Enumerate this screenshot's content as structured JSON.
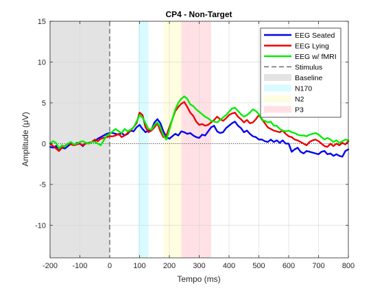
{
  "chart_data": {
    "type": "line",
    "title": "CP4 - Non-Target",
    "xlabel": "Tempo (ms)",
    "ylabel": "Amplitude (μV)",
    "xlim": [
      -200,
      800
    ],
    "ylim": [
      -14,
      15
    ],
    "xticks": [
      "-200",
      "-100",
      "0",
      "100",
      "200",
      "300",
      "400",
      "500",
      "600",
      "700",
      "800"
    ],
    "xtick_values": [
      -200,
      -100,
      0,
      100,
      200,
      300,
      400,
      500,
      600,
      700,
      800
    ],
    "yticks": [
      "15",
      "10",
      "5",
      "0",
      "-5",
      "-10"
    ],
    "ytick_values": [
      15,
      10,
      5,
      0,
      -5,
      -10
    ],
    "grid": true,
    "legend_position": "top-right",
    "stimulus_x": 0,
    "zero_line": true,
    "regions": [
      {
        "name": "Baseline",
        "from": -200,
        "to": 0,
        "color": "#e3e3e3"
      },
      {
        "name": "N170",
        "from": 95,
        "to": 130,
        "color": "#d9fbff"
      },
      {
        "name": "N2",
        "from": 180,
        "to": 240,
        "color": "#fffde0"
      },
      {
        "name": "P3",
        "from": 240,
        "to": 340,
        "color": "#ffe1e5"
      }
    ],
    "series": [
      {
        "name": "EEG Seated",
        "color": "#0000ee",
        "x": [
          -200,
          -190,
          -180,
          -170,
          -160,
          -150,
          -140,
          -130,
          -120,
          -110,
          -100,
          -90,
          -80,
          -70,
          -60,
          -50,
          -40,
          -30,
          -20,
          -10,
          0,
          10,
          20,
          30,
          40,
          50,
          60,
          70,
          80,
          90,
          100,
          110,
          120,
          130,
          140,
          150,
          160,
          170,
          180,
          190,
          200,
          210,
          220,
          230,
          240,
          250,
          260,
          270,
          280,
          290,
          300,
          310,
          320,
          330,
          340,
          350,
          360,
          370,
          380,
          390,
          400,
          410,
          420,
          430,
          440,
          450,
          460,
          470,
          480,
          490,
          500,
          510,
          520,
          530,
          540,
          550,
          560,
          570,
          580,
          590,
          600,
          610,
          620,
          630,
          640,
          650,
          660,
          670,
          680,
          690,
          700,
          710,
          720,
          730,
          740,
          750,
          760,
          770,
          780,
          790,
          800
        ],
        "values": [
          -0.4,
          -0.5,
          -0.3,
          -0.8,
          -0.5,
          -0.6,
          -0.3,
          0.0,
          -0.2,
          0.1,
          0.0,
          -0.3,
          0.1,
          0.0,
          0.2,
          0.3,
          0.6,
          0.8,
          1.0,
          1.2,
          1.3,
          1.3,
          1.2,
          1.1,
          1.3,
          1.0,
          1.2,
          1.6,
          1.5,
          2.0,
          2.3,
          1.8,
          1.4,
          1.6,
          1.7,
          2.6,
          3.0,
          2.5,
          1.5,
          0.8,
          0.6,
          0.9,
          1.2,
          1.0,
          1.5,
          1.4,
          1.2,
          1.3,
          1.0,
          0.8,
          0.7,
          1.1,
          1.0,
          1.5,
          2.0,
          2.2,
          1.5,
          1.3,
          1.4,
          1.9,
          2.2,
          2.5,
          2.7,
          2.2,
          1.9,
          1.4,
          1.6,
          1.2,
          0.9,
          0.8,
          0.5,
          0.5,
          0.3,
          0.2,
          0.5,
          0.2,
          0.4,
          0.1,
          0.4,
          0.0,
          0.0,
          -1.0,
          -0.7,
          -0.5,
          -1.0,
          -1.2,
          -0.9,
          -1.0,
          -1.1,
          -1.2,
          -1.3,
          -1.0,
          -0.9,
          -1.3,
          -1.2,
          -1.5,
          -1.3,
          -1.5,
          -1.6,
          -0.9,
          -0.7
        ]
      },
      {
        "name": "EEG Lying",
        "color": "#ee0000",
        "x": [
          -200,
          -190,
          -180,
          -170,
          -160,
          -150,
          -140,
          -130,
          -120,
          -110,
          -100,
          -90,
          -80,
          -70,
          -60,
          -50,
          -40,
          -30,
          -20,
          -10,
          0,
          10,
          20,
          30,
          40,
          50,
          60,
          70,
          80,
          90,
          100,
          110,
          120,
          130,
          140,
          150,
          160,
          170,
          180,
          190,
          200,
          210,
          220,
          230,
          240,
          250,
          260,
          270,
          280,
          290,
          300,
          310,
          320,
          330,
          340,
          350,
          360,
          370,
          380,
          390,
          400,
          410,
          420,
          430,
          440,
          450,
          460,
          470,
          480,
          490,
          500,
          510,
          520,
          530,
          540,
          550,
          560,
          570,
          580,
          590,
          600,
          610,
          620,
          630,
          640,
          650,
          660,
          670,
          680,
          690,
          700,
          710,
          720,
          730,
          740,
          750,
          760,
          770,
          780,
          790,
          800
        ],
        "values": [
          0.0,
          -0.3,
          -0.6,
          -0.9,
          -0.5,
          -0.3,
          0.0,
          -0.1,
          -0.2,
          -0.1,
          0.0,
          -0.2,
          0.0,
          0.1,
          0.2,
          0.5,
          0.3,
          0.6,
          0.7,
          0.8,
          0.9,
          0.9,
          1.0,
          1.2,
          0.8,
          1.0,
          1.3,
          1.6,
          2.0,
          2.5,
          3.8,
          3.5,
          2.0,
          1.4,
          1.6,
          2.0,
          2.5,
          1.5,
          0.8,
          1.0,
          2.0,
          3.0,
          4.0,
          4.5,
          4.9,
          5.1,
          4.5,
          3.8,
          3.4,
          2.7,
          2.3,
          2.4,
          2.2,
          2.3,
          2.6,
          2.9,
          3.3,
          3.0,
          2.8,
          3.1,
          3.5,
          3.7,
          3.8,
          3.3,
          3.0,
          2.6,
          2.9,
          2.5,
          2.6,
          3.0,
          3.5,
          3.0,
          2.5,
          2.0,
          1.8,
          1.6,
          1.5,
          1.4,
          1.6,
          1.2,
          0.9,
          0.8,
          0.5,
          0.4,
          0.2,
          0.0,
          -0.2,
          0.2,
          0.4,
          0.5,
          0.3,
          0.0,
          -0.3,
          -0.4,
          0.0,
          -0.3,
          0.0,
          -0.2,
          0.1,
          -0.1,
          0.3
        ]
      },
      {
        "name": "EEG w/ fMRI",
        "color": "#00ee00",
        "x": [
          -200,
          -190,
          -180,
          -170,
          -160,
          -150,
          -140,
          -130,
          -120,
          -110,
          -100,
          -90,
          -80,
          -70,
          -60,
          -50,
          -40,
          -30,
          -20,
          -10,
          0,
          10,
          20,
          30,
          40,
          50,
          60,
          70,
          80,
          90,
          100,
          110,
          120,
          130,
          140,
          150,
          160,
          170,
          180,
          190,
          200,
          210,
          220,
          230,
          240,
          250,
          260,
          270,
          280,
          290,
          300,
          310,
          320,
          330,
          340,
          350,
          360,
          370,
          380,
          390,
          400,
          410,
          420,
          430,
          440,
          450,
          460,
          470,
          480,
          490,
          500,
          510,
          520,
          530,
          540,
          550,
          560,
          570,
          580,
          590,
          600,
          610,
          620,
          630,
          640,
          650,
          660,
          670,
          680,
          690,
          700,
          710,
          720,
          730,
          740,
          750,
          760,
          770,
          780,
          790,
          800
        ],
        "values": [
          0.0,
          0.3,
          0.1,
          -0.6,
          -0.2,
          -0.4,
          0.0,
          0.2,
          -0.1,
          0.0,
          0.2,
          0.3,
          0.1,
          0.0,
          0.2,
          0.2,
          0.0,
          -0.2,
          0.4,
          1.0,
          1.2,
          1.5,
          1.8,
          1.5,
          1.3,
          1.8,
          1.5,
          1.7,
          2.0,
          2.7,
          3.5,
          3.2,
          2.5,
          1.8,
          1.7,
          2.3,
          2.6,
          2.0,
          1.0,
          0.5,
          1.7,
          3.0,
          4.2,
          5.0,
          5.5,
          5.8,
          5.5,
          4.8,
          4.6,
          4.2,
          3.9,
          3.6,
          3.3,
          3.1,
          2.8,
          2.7,
          2.6,
          2.9,
          3.2,
          3.5,
          3.9,
          4.3,
          4.4,
          4.0,
          3.6,
          3.3,
          3.5,
          3.8,
          4.2,
          4.0,
          3.6,
          2.9,
          2.8,
          2.6,
          2.7,
          2.2,
          2.2,
          1.8,
          1.6,
          1.5,
          1.6,
          1.4,
          1.3,
          1.1,
          1.0,
          1.0,
          0.9,
          1.1,
          1.2,
          1.3,
          1.1,
          0.8,
          0.5,
          0.7,
          0.5,
          0.2,
          0.4,
          0.1,
          0.3,
          0.5,
          0.4
        ]
      }
    ],
    "legend": [
      {
        "label": "EEG Seated",
        "kind": "line",
        "color": "#0000ee"
      },
      {
        "label": "EEG Lying",
        "kind": "line",
        "color": "#ee0000"
      },
      {
        "label": "EEG w/ fMRI",
        "kind": "line",
        "color": "#00ee00"
      },
      {
        "label": "Stimulus",
        "kind": "dash",
        "color": "#333333"
      },
      {
        "label": "Baseline",
        "kind": "patch",
        "color": "#e3e3e3"
      },
      {
        "label": "N170",
        "kind": "patch",
        "color": "#d9fbff"
      },
      {
        "label": "N2",
        "kind": "patch",
        "color": "#fffde0"
      },
      {
        "label": "P3",
        "kind": "patch",
        "color": "#ffe1e5"
      }
    ]
  }
}
